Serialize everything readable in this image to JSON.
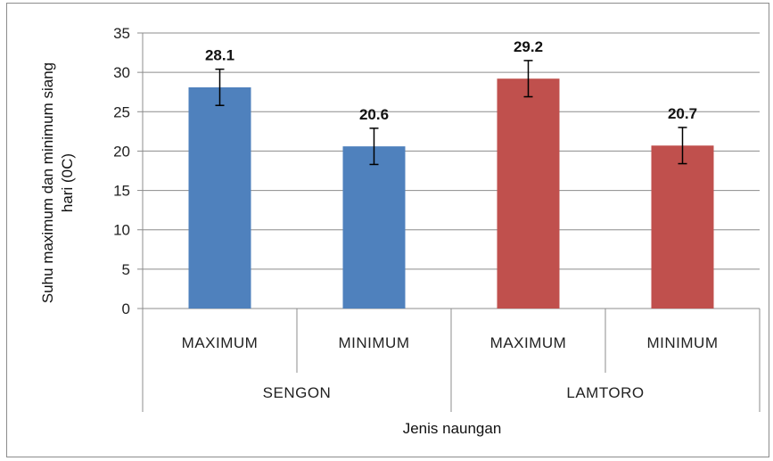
{
  "chart_data": {
    "type": "bar",
    "xlabel": "Jenis naungan",
    "ylabel_line1": "Suhu maximum dan minimum siang",
    "ylabel_line2": "hari (0C)",
    "ylim": [
      0,
      35
    ],
    "yticks": [
      0,
      5,
      10,
      15,
      20,
      25,
      30,
      35
    ],
    "grid": "horizontal",
    "groups": [
      {
        "name": "SENGON",
        "color": "#4F81BD",
        "bars": [
          {
            "category": "MAXIMUM",
            "value": 28.1,
            "label": "28.1",
            "error": 2.3
          },
          {
            "category": "MINIMUM",
            "value": 20.6,
            "label": "20.6",
            "error": 2.3
          }
        ]
      },
      {
        "name": "LAMTORO",
        "color": "#C0504D",
        "bars": [
          {
            "category": "MAXIMUM",
            "value": 29.2,
            "label": "29.2",
            "error": 2.3
          },
          {
            "category": "MINIMUM",
            "value": 20.7,
            "label": "20.7",
            "error": 2.3
          }
        ]
      }
    ]
  }
}
